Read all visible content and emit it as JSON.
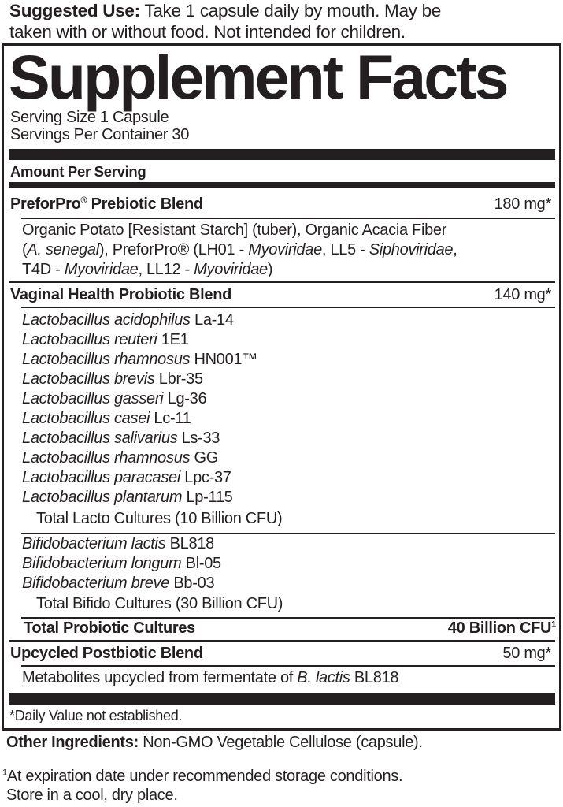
{
  "suggested_use": {
    "label": "Suggested Use:",
    "line1": "Take 1 capsule daily by mouth. May be",
    "line2": "taken with or without food. Not intended for children."
  },
  "facts": {
    "title": "Supplement Facts",
    "serving_size": "Serving Size 1 Capsule",
    "servings_per_container": "Servings Per Container 30",
    "amount_per_serving": "Amount Per Serving",
    "prebiotic": {
      "name": "PreforPro",
      "reg": "®",
      "name_rest": " Prebiotic Blend",
      "amount": "180 mg*",
      "ingredients_line1": "Organic Potato [Resistant Starch] (tuber), Organic Acacia Fiber",
      "line2": [
        {
          "text": "(",
          "italic": false
        },
        {
          "text": "A. senegal",
          "italic": true
        },
        {
          "text": "), PreforPro® (LH01 - ",
          "italic": false
        },
        {
          "text": "Myoviridae",
          "italic": true
        },
        {
          "text": ", LL5 - ",
          "italic": false
        },
        {
          "text": "Siphoviridae",
          "italic": true
        },
        {
          "text": ",",
          "italic": false
        }
      ],
      "line3": [
        {
          "text": "T4D - ",
          "italic": false
        },
        {
          "text": "Myoviridae",
          "italic": true
        },
        {
          "text": ", LL12 - ",
          "italic": false
        },
        {
          "text": "Myoviridae",
          "italic": true
        },
        {
          "text": ")",
          "italic": false
        }
      ]
    },
    "vaginal": {
      "name": "Vaginal Health Probiotic Blend",
      "amount": "140 mg*",
      "lacto_strains": [
        {
          "species": "Lactobacillus acidophilus",
          "strain": " La-14"
        },
        {
          "species": "Lactobacillus reuteri",
          "strain": " 1E1"
        },
        {
          "species": "Lactobacillus rhamnosus",
          "strain": " HN001™"
        },
        {
          "species": "Lactobacillus brevis",
          "strain": " Lbr-35"
        },
        {
          "species": "Lactobacillus gasseri",
          "strain": " Lg-36"
        },
        {
          "species": "Lactobacillus casei",
          "strain": " Lc-11"
        },
        {
          "species": "Lactobacillus salivarius",
          "strain": " Ls-33"
        },
        {
          "species": "Lactobacillus rhamnosus",
          "strain": " GG"
        },
        {
          "species": "Lactobacillus paracasei",
          "strain": " Lpc-37"
        },
        {
          "species": "Lactobacillus plantarum",
          "strain": " Lp-115"
        }
      ],
      "total_lacto": "Total Lacto Cultures (10 Billion CFU)",
      "bifido_strains": [
        {
          "species": "Bifidobacterium lactis",
          "strain": " BL818"
        },
        {
          "species": "Bifidobacterium longum",
          "strain": " Bl-05"
        },
        {
          "species": "Bifidobacterium breve",
          "strain": " Bb-03"
        }
      ],
      "total_bifido": "Total Bifido Cultures (30 Billion CFU)"
    },
    "total_probiotic": {
      "name": "Total Probiotic Cultures",
      "amount": "40 Billion CFU",
      "footnote_mark": "1"
    },
    "postbiotic": {
      "name": "Upcycled Postbiotic Blend",
      "amount": "50 mg*",
      "desc_pre": "Metabolites upcycled from fermentate of ",
      "desc_italic": "B. lactis",
      "desc_post": " BL818"
    },
    "daily_value_note": "*Daily Value not established."
  },
  "other_ingredients": {
    "label": "Other Ingredients:",
    "text": " Non-GMO Vegetable Cellulose (capsule)."
  },
  "footnote": {
    "mark": "1",
    "line1": "At expiration date under recommended storage conditions.",
    "line2": "Store in a cool, dry place."
  }
}
